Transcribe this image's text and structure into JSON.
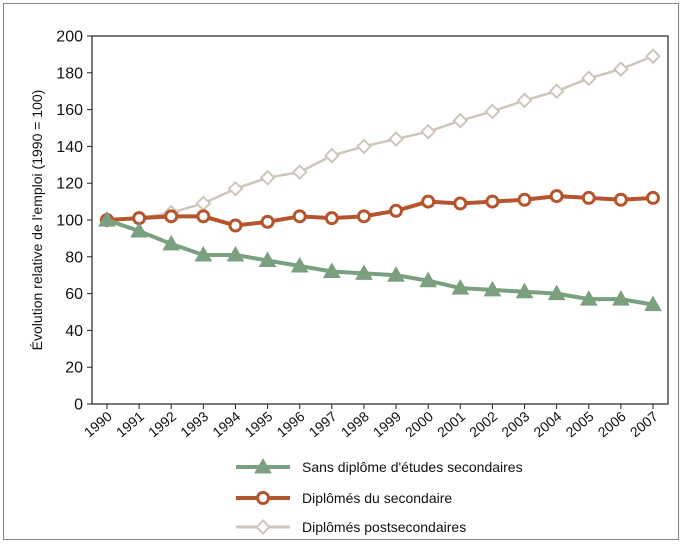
{
  "chart_data": {
    "type": "line",
    "title": "",
    "xlabel": "",
    "ylabel": "Évolution relative de l'emploi (1990 = 100)",
    "ylim": [
      0,
      200
    ],
    "yticks": [
      0,
      20,
      40,
      60,
      80,
      100,
      120,
      140,
      160,
      180,
      200
    ],
    "grid": false,
    "legend_position": "bottom",
    "categories": [
      "1990",
      "1991",
      "1992",
      "1993",
      "1994",
      "1995",
      "1996",
      "1997",
      "1998",
      "1999",
      "2000",
      "2001",
      "2002",
      "2003",
      "2004",
      "2005",
      "2006",
      "2007"
    ],
    "series": [
      {
        "name": "Sans diplôme d'études secondaires",
        "color": "#7aa07f",
        "marker": "triangle",
        "values": [
          100,
          94,
          87,
          81,
          81,
          78,
          75,
          72,
          71,
          70,
          67,
          63,
          62,
          61,
          60,
          57,
          57,
          54
        ]
      },
      {
        "name": "Diplômés du secondaire",
        "color": "#b6552d",
        "marker": "circle",
        "values": [
          100,
          101,
          102,
          102,
          97,
          99,
          102,
          101,
          102,
          105,
          110,
          109,
          110,
          111,
          113,
          112,
          111,
          112
        ]
      },
      {
        "name": "Diplômés postsecondaires",
        "color": "#cdc6b9",
        "marker": "diamond",
        "values": [
          100,
          101,
          104,
          109,
          117,
          123,
          126,
          135,
          140,
          144,
          148,
          154,
          159,
          165,
          170,
          177,
          182,
          189
        ]
      }
    ]
  }
}
